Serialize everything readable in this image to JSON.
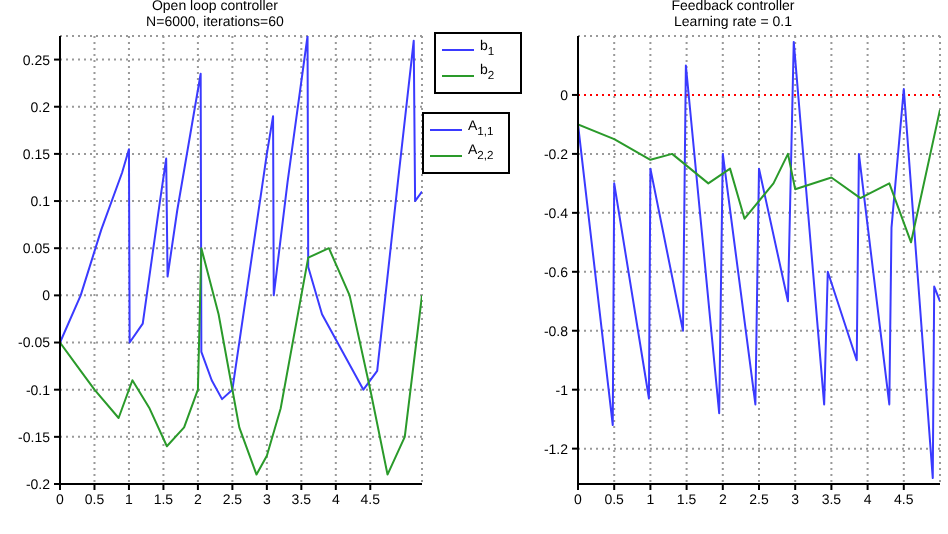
{
  "chart_data": [
    {
      "type": "line",
      "title": "Open loop controller",
      "subtitle": "N=6000, iterations=60",
      "legend": "right",
      "grid": true,
      "xlim": [
        0,
        5.25
      ],
      "xticks": [
        0,
        0.5,
        1,
        1.5,
        2,
        2.5,
        3,
        3.5,
        4,
        4.5
      ],
      "ylim": [
        -0.2,
        0.275
      ],
      "yticks": [
        -0.2,
        -0.15,
        -0.1,
        -0.05,
        0,
        0.05,
        0.1,
        0.15,
        0.2,
        0.25
      ],
      "series": [
        {
          "name": "b$_{1}$",
          "color": "#3a3aff",
          "x": [
            0,
            0.3,
            0.6,
            0.9,
            1.0,
            1.01,
            1.2,
            1.45,
            1.54,
            1.56,
            1.7,
            2.04,
            2.05,
            2.2,
            2.35,
            2.5,
            2.7,
            3.0,
            3.09,
            3.1,
            3.3,
            3.59,
            3.6,
            3.8,
            4.1,
            4.4,
            4.6,
            4.9,
            5.13,
            5.15,
            5.25
          ],
          "values": [
            -0.05,
            0.0,
            0.07,
            0.13,
            0.155,
            -0.05,
            -0.03,
            0.1,
            0.145,
            0.02,
            0.09,
            0.235,
            -0.06,
            -0.09,
            -0.11,
            -0.1,
            0.0,
            0.15,
            0.19,
            0.0,
            0.12,
            0.275,
            0.03,
            -0.02,
            -0.06,
            -0.1,
            -0.08,
            0.12,
            0.27,
            0.1,
            0.11
          ]
        },
        {
          "name": "b$_{2}$",
          "color": "#2a9a2a",
          "x": [
            0,
            0.3,
            0.5,
            0.85,
            1.05,
            1.3,
            1.55,
            1.8,
            2.0,
            2.05,
            2.3,
            2.6,
            2.85,
            3.0,
            3.2,
            3.6,
            3.9,
            4.2,
            4.5,
            4.75,
            5.0,
            5.25
          ],
          "values": [
            -0.05,
            -0.08,
            -0.1,
            -0.13,
            -0.09,
            -0.12,
            -0.16,
            -0.14,
            -0.1,
            0.05,
            -0.02,
            -0.14,
            -0.19,
            -0.17,
            -0.12,
            0.04,
            0.05,
            0.0,
            -0.1,
            -0.19,
            -0.15,
            0.0
          ]
        }
      ]
    },
    {
      "type": "line",
      "title": "Feedback controller",
      "subtitle": "Learning rate = 0.1",
      "legend": "left",
      "grid": true,
      "xlim": [
        0,
        5
      ],
      "xticks": [
        0,
        0.5,
        1,
        1.5,
        2,
        2.5,
        3,
        3.5,
        4,
        4.5
      ],
      "ylim": [
        -1.32,
        0.2
      ],
      "yticks": [
        -1.2,
        -1,
        -0.8,
        -0.6,
        -0.4,
        -0.2,
        0
      ],
      "ref_lines": [
        {
          "axis": "y",
          "value": 0,
          "color": "#ff0000",
          "line_style": "dotted"
        }
      ],
      "series": [
        {
          "name": "A$_{1,1}$",
          "color": "#3a3aff",
          "x": [
            0,
            0.48,
            0.5,
            0.98,
            1.0,
            1.45,
            1.49,
            1.95,
            2.0,
            2.45,
            2.5,
            2.9,
            2.98,
            3.4,
            3.45,
            3.85,
            3.88,
            4.3,
            4.33,
            4.5,
            4.9,
            4.92,
            5.0
          ],
          "values": [
            -0.1,
            -1.12,
            -0.3,
            -1.03,
            -0.25,
            -0.8,
            0.1,
            -1.08,
            -0.2,
            -1.05,
            -0.25,
            -0.7,
            0.18,
            -1.05,
            -0.6,
            -0.9,
            -0.2,
            -1.05,
            -0.45,
            0.02,
            -1.3,
            -0.65,
            -0.7
          ]
        },
        {
          "name": "A$_{2,2}$",
          "color": "#2a9a2a",
          "x": [
            0,
            0.5,
            1.0,
            1.3,
            1.8,
            2.1,
            2.3,
            2.7,
            2.9,
            3.0,
            3.5,
            3.9,
            4.3,
            4.6,
            5.0
          ],
          "values": [
            -0.1,
            -0.15,
            -0.22,
            -0.2,
            -0.3,
            -0.25,
            -0.42,
            -0.3,
            -0.2,
            -0.32,
            -0.28,
            -0.35,
            -0.3,
            -0.5,
            -0.05
          ]
        }
      ]
    }
  ]
}
